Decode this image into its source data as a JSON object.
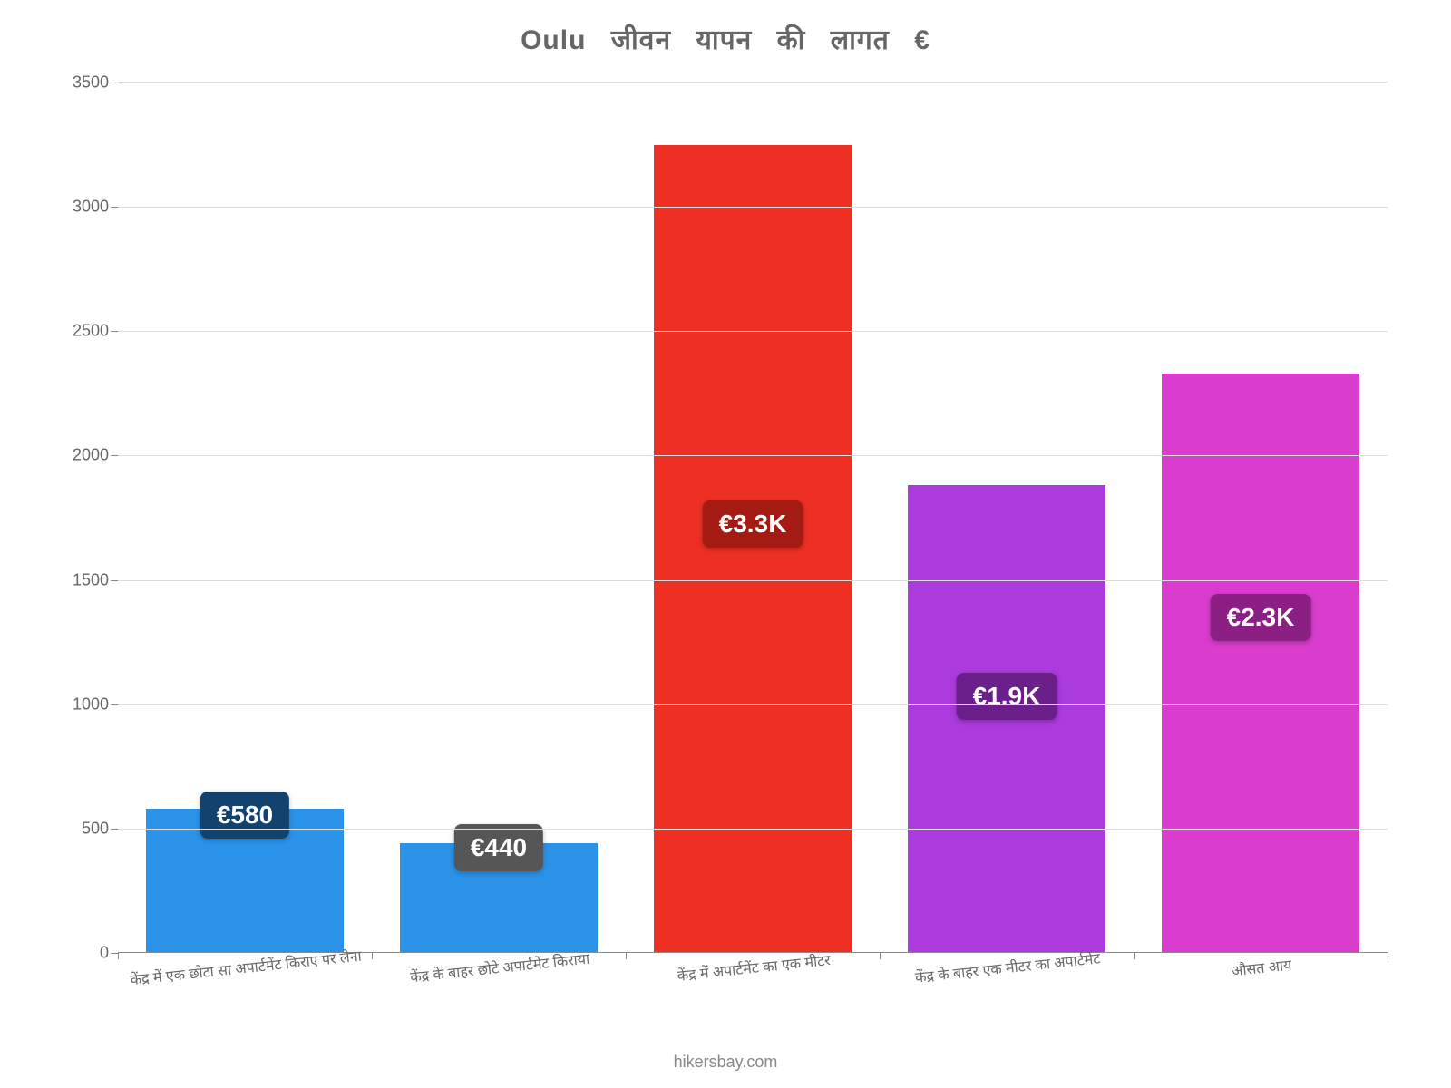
{
  "chart": {
    "type": "bar",
    "title": "Oulu जीवन यापन की लागत €",
    "title_fontsize": 30,
    "title_color": "#666666",
    "background_color": "#ffffff",
    "ylim": [
      0,
      3500
    ],
    "ytick_step": 500,
    "yticks": [
      0,
      500,
      1000,
      1500,
      2000,
      2500,
      3000,
      3500
    ],
    "grid_color": "#dddddd",
    "axis_color": "#888888",
    "label_fontsize": 18,
    "label_color": "#666666",
    "xlabel_fontsize": 16,
    "bar_width_pct": 78,
    "badge_fontsize": 28,
    "bars": [
      {
        "category": "केंद्र में एक छोटा सा अपार्टमेंट किराए पर लेना",
        "value": 580,
        "display": "€580",
        "bar_color": "#2a93e8",
        "badge_bg": "#12436e",
        "badge_top_pct": -12
      },
      {
        "category": "केंद्र के बाहर छोटे अपार्टमेंट किराया",
        "value": 440,
        "display": "€440",
        "bar_color": "#2a93e8",
        "badge_bg": "#565656",
        "badge_top_pct": -18
      },
      {
        "category": "केंद्र में अपार्टमेंट का एक मीटर",
        "value": 3250,
        "display": "€3.3K",
        "bar_color": "#ee3024",
        "badge_bg": "#a51b13",
        "badge_top_pct": 44
      },
      {
        "category": "केंद्र के बाहर एक मीटर का अपार्टमेंट",
        "value": 1880,
        "display": "€1.9K",
        "bar_color": "#ab3bdd",
        "badge_bg": "#6a1f8b",
        "badge_top_pct": 40
      },
      {
        "category": "औसत आय",
        "value": 2330,
        "display": "€2.3K",
        "bar_color": "#da3dce",
        "badge_bg": "#8b1f83",
        "badge_top_pct": 38
      }
    ],
    "footer": "hikersbay.com",
    "footer_color": "#888888"
  }
}
